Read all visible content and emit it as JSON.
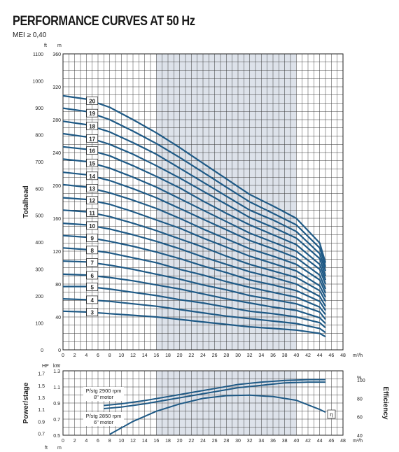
{
  "title": "PERFORMANCE CURVES AT 50 Hz",
  "subtitle": "MEI ≥ 0,40",
  "chart_data": [
    {
      "type": "line",
      "name": "head",
      "xlabel": "m³/h",
      "ylabel": "Totalhead",
      "ylabel_left_unit": "ft",
      "ylabel_right_unit": "m",
      "xlim": [
        0,
        48
      ],
      "ylim": [
        0,
        360
      ],
      "ylim_ft": [
        0,
        1100
      ],
      "x_ticks": [
        0,
        2,
        4,
        6,
        8,
        10,
        12,
        14,
        16,
        18,
        20,
        22,
        24,
        26,
        28,
        30,
        32,
        34,
        36,
        38,
        40,
        42,
        44,
        46,
        48
      ],
      "y_ticks_m": [
        0,
        40,
        80,
        120,
        160,
        200,
        240,
        280,
        320,
        360
      ],
      "y_ticks_ft": [
        0,
        100,
        200,
        300,
        400,
        500,
        600,
        700,
        800,
        900,
        1000,
        1100
      ],
      "shaded_x_range": [
        16,
        40
      ],
      "grid": true,
      "series_color": "#1f5a86",
      "curve_x": [
        0,
        4,
        8,
        12,
        16,
        20,
        24,
        28,
        32,
        36,
        40,
        44,
        45
      ],
      "series": [
        {
          "name": "3",
          "label_x": 5,
          "values": [
            47,
            46,
            44,
            42,
            40,
            37,
            34,
            31,
            28,
            26,
            24,
            20,
            16
          ]
        },
        {
          "name": "4",
          "label_x": 5,
          "values": [
            62,
            61,
            59,
            56,
            53,
            49,
            45,
            41,
            38,
            35,
            32,
            26,
            21
          ]
        },
        {
          "name": "5",
          "label_x": 5,
          "values": [
            77,
            77,
            74,
            70,
            66,
            61,
            57,
            52,
            47,
            44,
            40,
            33,
            27
          ]
        },
        {
          "name": "6",
          "label_x": 5,
          "values": [
            92,
            91,
            88,
            84,
            79,
            74,
            68,
            62,
            57,
            52,
            48,
            39,
            32
          ]
        },
        {
          "name": "7",
          "label_x": 5,
          "values": [
            108,
            107,
            103,
            98,
            92,
            86,
            79,
            73,
            66,
            61,
            56,
            46,
            37
          ]
        },
        {
          "name": "8",
          "label_x": 5,
          "values": [
            124,
            122,
            118,
            112,
            106,
            98,
            91,
            83,
            76,
            70,
            64,
            52,
            43
          ]
        },
        {
          "name": "9",
          "label_x": 5,
          "values": [
            139,
            137,
            132,
            126,
            119,
            111,
            102,
            94,
            85,
            79,
            72,
            59,
            48
          ]
        },
        {
          "name": "10",
          "label_x": 5,
          "values": [
            154,
            152,
            147,
            140,
            132,
            123,
            113,
            104,
            95,
            88,
            80,
            65,
            53
          ]
        },
        {
          "name": "11",
          "label_x": 5,
          "values": [
            170,
            168,
            162,
            154,
            145,
            135,
            125,
            114,
            104,
            96,
            88,
            72,
            59
          ]
        },
        {
          "name": "12",
          "label_x": 5,
          "values": [
            185,
            183,
            177,
            168,
            158,
            148,
            136,
            125,
            114,
            105,
            96,
            78,
            64
          ]
        },
        {
          "name": "13",
          "label_x": 5,
          "values": [
            201,
            198,
            191,
            182,
            172,
            160,
            147,
            135,
            123,
            114,
            104,
            85,
            69
          ]
        },
        {
          "name": "14",
          "label_x": 5,
          "values": [
            216,
            213,
            206,
            196,
            185,
            172,
            159,
            146,
            133,
            123,
            112,
            91,
            74
          ]
        },
        {
          "name": "15",
          "label_x": 5,
          "values": [
            232,
            229,
            221,
            210,
            198,
            184,
            170,
            156,
            142,
            131,
            120,
            98,
            80
          ]
        },
        {
          "name": "16",
          "label_x": 5,
          "values": [
            247,
            244,
            236,
            224,
            211,
            197,
            181,
            166,
            152,
            140,
            128,
            104,
            85
          ]
        },
        {
          "name": "17",
          "label_x": 5,
          "values": [
            263,
            259,
            250,
            238,
            224,
            209,
            193,
            177,
            161,
            149,
            136,
            111,
            90
          ]
        },
        {
          "name": "18",
          "label_x": 5,
          "values": [
            278,
            274,
            265,
            252,
            238,
            221,
            204,
            187,
            170,
            158,
            144,
            117,
            96
          ]
        },
        {
          "name": "19",
          "label_x": 5,
          "values": [
            294,
            290,
            280,
            266,
            251,
            234,
            216,
            198,
            180,
            166,
            152,
            124,
            101
          ]
        },
        {
          "name": "20",
          "label_x": 5,
          "values": [
            309,
            305,
            295,
            280,
            264,
            246,
            227,
            208,
            189,
            175,
            160,
            130,
            106
          ]
        }
      ]
    },
    {
      "type": "line",
      "name": "power_efficiency",
      "xlabel": "m³/h",
      "ylabel": "Power/stage",
      "ylabel_right": "Efficiency",
      "left_unit_hp": "HP",
      "left_unit_kw": "kW",
      "right_unit": "%",
      "xlim": [
        0,
        48
      ],
      "ylim_kw": [
        0.5,
        1.3
      ],
      "kw_ticks": [
        0.5,
        0.7,
        0.9,
        1.1,
        1.3
      ],
      "hp_ticks": [
        0.7,
        0.9,
        1.1,
        1.3,
        1.5,
        1.7
      ],
      "eff_ticks": [
        40,
        60,
        80,
        100
      ],
      "ylim_eff": [
        40,
        110
      ],
      "series": [
        {
          "name": "P/stg 2900 rpm 8\" motor",
          "x": [
            7,
            10,
            14,
            18,
            22,
            26,
            30,
            34,
            38,
            42,
            45
          ],
          "values": [
            0.87,
            0.89,
            0.93,
            0.98,
            1.03,
            1.08,
            1.13,
            1.16,
            1.18,
            1.19,
            1.19
          ]
        },
        {
          "name": "P/stg 2850 rpm 6\" motor",
          "x": [
            7,
            10,
            14,
            18,
            22,
            26,
            30,
            34,
            38,
            42,
            45
          ],
          "values": [
            0.83,
            0.85,
            0.89,
            0.94,
            0.99,
            1.04,
            1.09,
            1.12,
            1.15,
            1.16,
            1.16
          ]
        },
        {
          "name": "η",
          "x": [
            8,
            12,
            16,
            20,
            24,
            28,
            32,
            36,
            40,
            44,
            45
          ],
          "values": [
            41,
            55,
            66,
            74,
            80,
            83,
            83.5,
            82,
            78,
            68,
            65
          ]
        }
      ],
      "labels": {
        "p2900_line1": "P/stg 2900 rpm",
        "p2900_line2": "8\" motor",
        "p2850_line1": "P/stg 2850 rpm",
        "p2850_line2": "6\" motor",
        "eta": "η"
      },
      "bottom_units": {
        "ft": "ft",
        "m": "m"
      }
    }
  ]
}
